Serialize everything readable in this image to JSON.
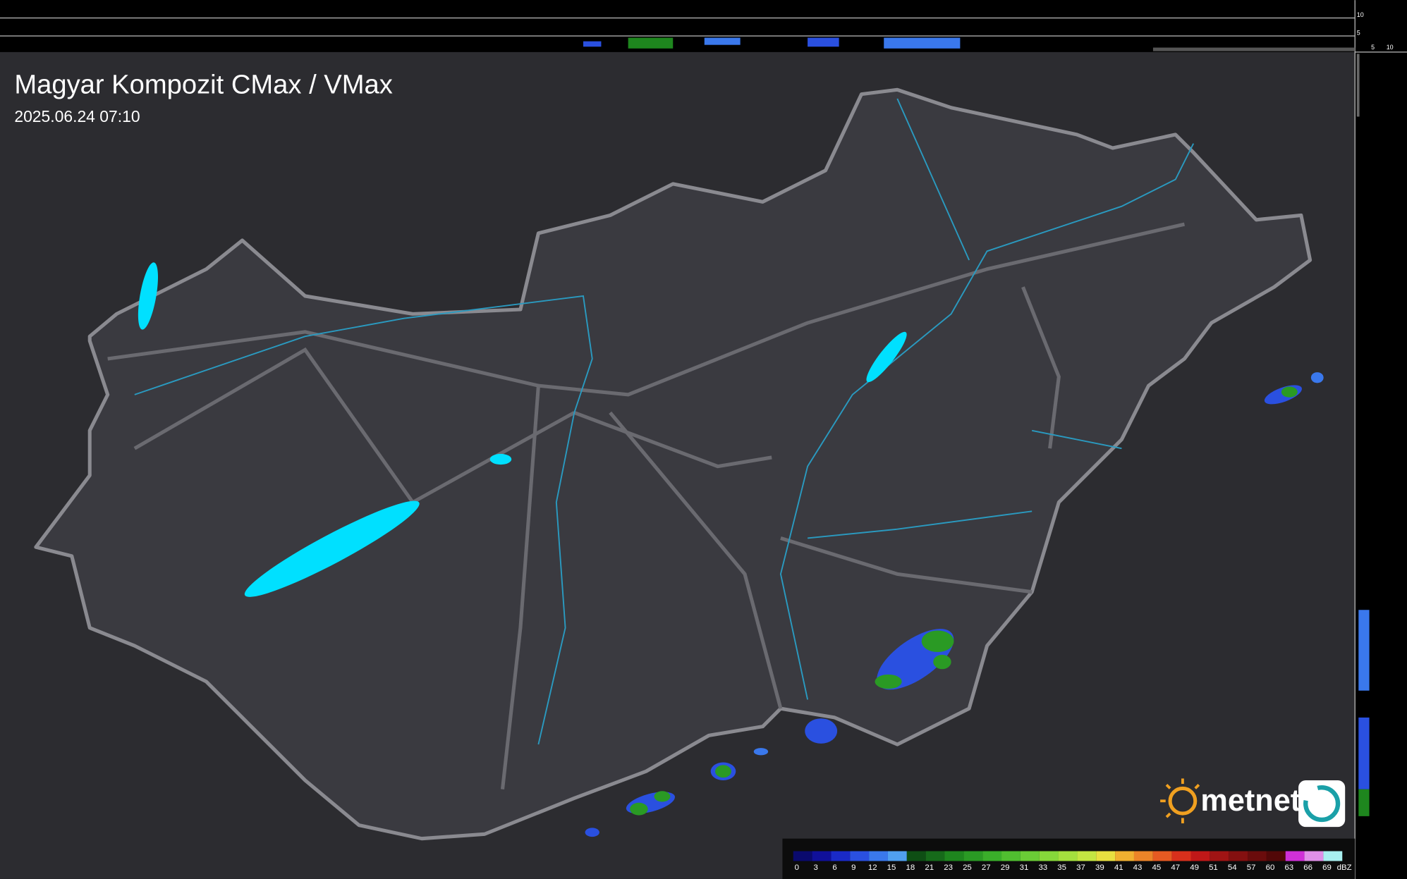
{
  "header": {
    "title": "Magyar Kompozit CMax / VMax",
    "timestamp": "2025.06.24 07:10"
  },
  "logo": {
    "text": "metnet"
  },
  "side_panel": {
    "labels": [
      "10",
      "5",
      "5",
      "10"
    ]
  },
  "colorbar": {
    "unit": "dBZ",
    "labels": [
      "0",
      "3",
      "6",
      "9",
      "12",
      "15",
      "18",
      "21",
      "23",
      "25",
      "27",
      "29",
      "31",
      "33",
      "35",
      "37",
      "39",
      "41",
      "43",
      "45",
      "47",
      "49",
      "51",
      "54",
      "57",
      "60",
      "63",
      "66",
      "69"
    ],
    "colors": [
      "#0a0a6e",
      "#10109a",
      "#1a2ac8",
      "#2a50e0",
      "#3a78ec",
      "#50a0f0",
      "#0e4e14",
      "#166a1a",
      "#1e861e",
      "#2a9a24",
      "#3aae2a",
      "#50be30",
      "#6acc36",
      "#86d83a",
      "#a4e03e",
      "#c4e642",
      "#e8e040",
      "#f0b030",
      "#ec8428",
      "#e65a22",
      "#d8301c",
      "#c01818",
      "#a01414",
      "#841010",
      "#6a0c0c",
      "#520808",
      "#d030d8",
      "#e090e8",
      "#a8f0f0"
    ]
  }
}
